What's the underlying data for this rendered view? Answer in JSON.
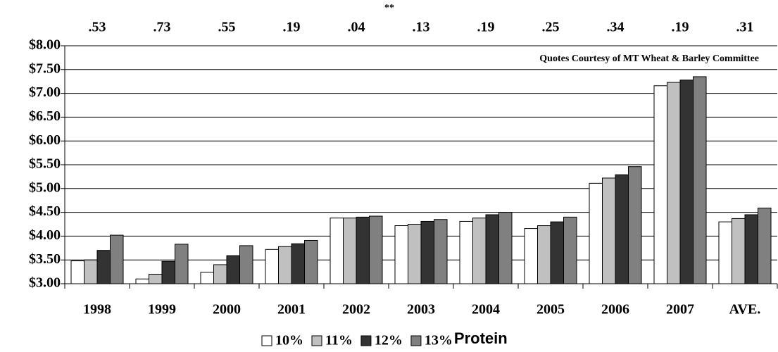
{
  "chart_data": {
    "type": "bar",
    "annotation": "Quotes Courtesy of MT Wheat & Barley Committee",
    "marker_note": "**",
    "spread_labels": [
      ".53",
      ".73",
      ".55",
      ".19",
      ".04",
      ".13",
      ".19",
      ".25",
      ".34",
      ".19",
      ".31"
    ],
    "legend_suffix": "Protein",
    "categories": [
      "1998",
      "1999",
      "2000",
      "2001",
      "2002",
      "2003",
      "2004",
      "2005",
      "2006",
      "2007",
      "AVE."
    ],
    "series": [
      {
        "name": "10%",
        "color": "#ffffff",
        "values": [
          3.48,
          3.1,
          3.24,
          3.72,
          4.38,
          4.22,
          4.31,
          4.16,
          5.11,
          7.16,
          4.3
        ]
      },
      {
        "name": "11%",
        "color": "#c0c0c0",
        "values": [
          3.5,
          3.2,
          3.4,
          3.78,
          4.38,
          4.25,
          4.38,
          4.22,
          5.22,
          7.23,
          4.37
        ]
      },
      {
        "name": "12%",
        "color": "#333333",
        "values": [
          3.7,
          3.47,
          3.59,
          3.84,
          4.4,
          4.31,
          4.45,
          4.3,
          5.29,
          7.28,
          4.45
        ]
      },
      {
        "name": "13%",
        "color": "#808080",
        "values": [
          4.02,
          3.83,
          3.8,
          3.91,
          4.42,
          4.35,
          4.5,
          4.4,
          5.46,
          7.35,
          4.59
        ]
      }
    ],
    "ylim": [
      3,
      8
    ],
    "yticks": [
      {
        "value": 3,
        "label": "$3.00"
      },
      {
        "value": 3.5,
        "label": "$3.50"
      },
      {
        "value": 4,
        "label": "$4.00"
      },
      {
        "value": 4.5,
        "label": "$4.50"
      },
      {
        "value": 5,
        "label": "$5.00"
      },
      {
        "value": 5.5,
        "label": "$5.50"
      },
      {
        "value": 6,
        "label": "$6.00"
      },
      {
        "value": 6.5,
        "label": "$6.50"
      },
      {
        "value": 7,
        "label": "$7.00"
      },
      {
        "value": 7.5,
        "label": "$7.50"
      },
      {
        "value": 8,
        "label": "$8.00"
      }
    ],
    "grid": true
  }
}
